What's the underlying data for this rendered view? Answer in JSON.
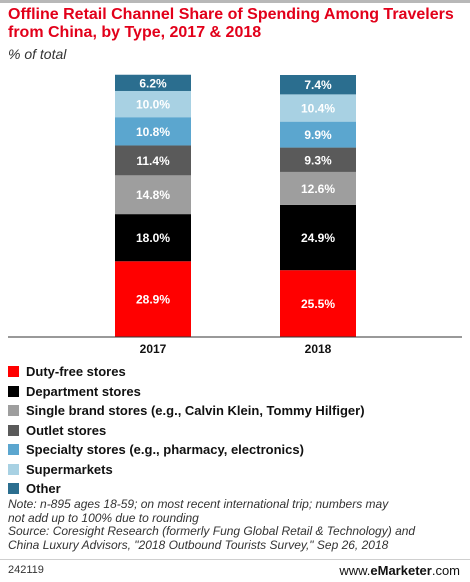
{
  "title": "Offline Retail Channel Share of Spending Among Travelers from China, by Type, 2017 & 2018",
  "subtitle": "% of total",
  "chart_data": {
    "type": "bar",
    "stacked": true,
    "categories": [
      "2017",
      "2018"
    ],
    "series": [
      {
        "name": "Duty-free stores",
        "color": "#ff0000",
        "values": [
          28.9,
          25.5
        ]
      },
      {
        "name": "Department stores",
        "color": "#000000",
        "values": [
          18.0,
          24.9
        ]
      },
      {
        "name": "Single brand stores (e.g., Calvin Klein, Tommy Hilfiger)",
        "color": "#9e9e9e",
        "values": [
          14.8,
          12.6
        ]
      },
      {
        "name": "Outlet stores",
        "color": "#5a5a5a",
        "values": [
          11.4,
          9.3
        ]
      },
      {
        "name": "Specialty stores (e.g., pharmacy, electronics)",
        "color": "#5ba6cf",
        "values": [
          10.8,
          9.9
        ]
      },
      {
        "name": "Supermarkets",
        "color": "#a8d1e3",
        "values": [
          10.0,
          10.4
        ]
      },
      {
        "name": "Other",
        "color": "#2b6e8f",
        "values": [
          6.2,
          7.4
        ]
      }
    ],
    "data_labels": [
      [
        "28.9%",
        "25.5%"
      ],
      [
        "18.0%",
        "24.9%"
      ],
      [
        "14.8%",
        "12.6%"
      ],
      [
        "11.4%",
        "9.3%"
      ],
      [
        "10.8%",
        "9.9%"
      ],
      [
        "10.0%",
        "10.4%"
      ],
      [
        "6.2%",
        "7.4%"
      ]
    ],
    "ylim": [
      0,
      100
    ],
    "grid": false,
    "legend_position": "bottom"
  },
  "notes": [
    "Note: n-895 ages 18-59; on most recent international trip; numbers may",
    "not add up to 100% due to rounding",
    "Source: Coresight Research (formerly Fung Global Retail & Technology) and",
    "China Luxury Advisors, \"2018 Outbound Tourists Survey,\" Sep 26, 2018"
  ],
  "footer": {
    "chart_id": "242119",
    "brand_prefix": "www.",
    "brand_name": "eMarketer",
    "brand_suffix": ".com"
  }
}
